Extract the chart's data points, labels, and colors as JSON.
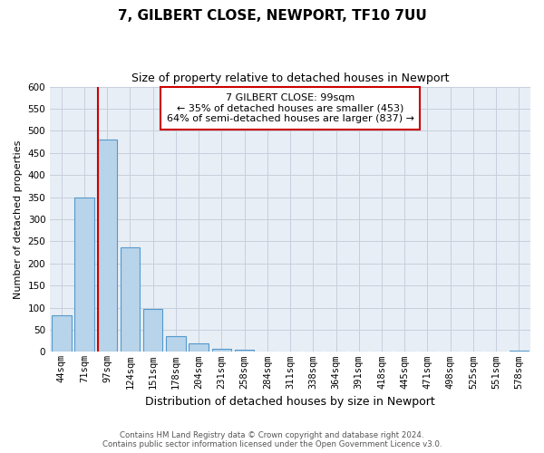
{
  "title": "7, GILBERT CLOSE, NEWPORT, TF10 7UU",
  "subtitle": "Size of property relative to detached houses in Newport",
  "xlabel": "Distribution of detached houses by size in Newport",
  "ylabel": "Number of detached properties",
  "bar_labels": [
    "44sqm",
    "71sqm",
    "97sqm",
    "124sqm",
    "151sqm",
    "178sqm",
    "204sqm",
    "231sqm",
    "258sqm",
    "284sqm",
    "311sqm",
    "338sqm",
    "364sqm",
    "391sqm",
    "418sqm",
    "445sqm",
    "471sqm",
    "498sqm",
    "525sqm",
    "551sqm",
    "578sqm"
  ],
  "bar_values": [
    83,
    350,
    480,
    236,
    97,
    35,
    19,
    7,
    5,
    0,
    0,
    0,
    0,
    0,
    0,
    0,
    0,
    0,
    0,
    0,
    3
  ],
  "bar_color": "#b8d4ea",
  "bar_edge_color": "#5599cc",
  "marker_bar_index": 2,
  "marker_color": "#cc0000",
  "ylim": [
    0,
    600
  ],
  "yticks": [
    0,
    50,
    100,
    150,
    200,
    250,
    300,
    350,
    400,
    450,
    500,
    550,
    600
  ],
  "annotation_title": "7 GILBERT CLOSE: 99sqm",
  "annotation_line1": "← 35% of detached houses are smaller (453)",
  "annotation_line2": "64% of semi-detached houses are larger (837) →",
  "annotation_box_color": "#ffffff",
  "annotation_border_color": "#cc0000",
  "footer_line1": "Contains HM Land Registry data © Crown copyright and database right 2024.",
  "footer_line2": "Contains public sector information licensed under the Open Government Licence v3.0.",
  "bg_color": "#ffffff",
  "plot_bg_color": "#e8eef5",
  "grid_color": "#c5d0dc",
  "title_fontsize": 11,
  "subtitle_fontsize": 9,
  "annotation_fontsize": 8,
  "ylabel_fontsize": 8,
  "xlabel_fontsize": 9,
  "tick_fontsize": 7.5,
  "footer_fontsize": 6.2
}
